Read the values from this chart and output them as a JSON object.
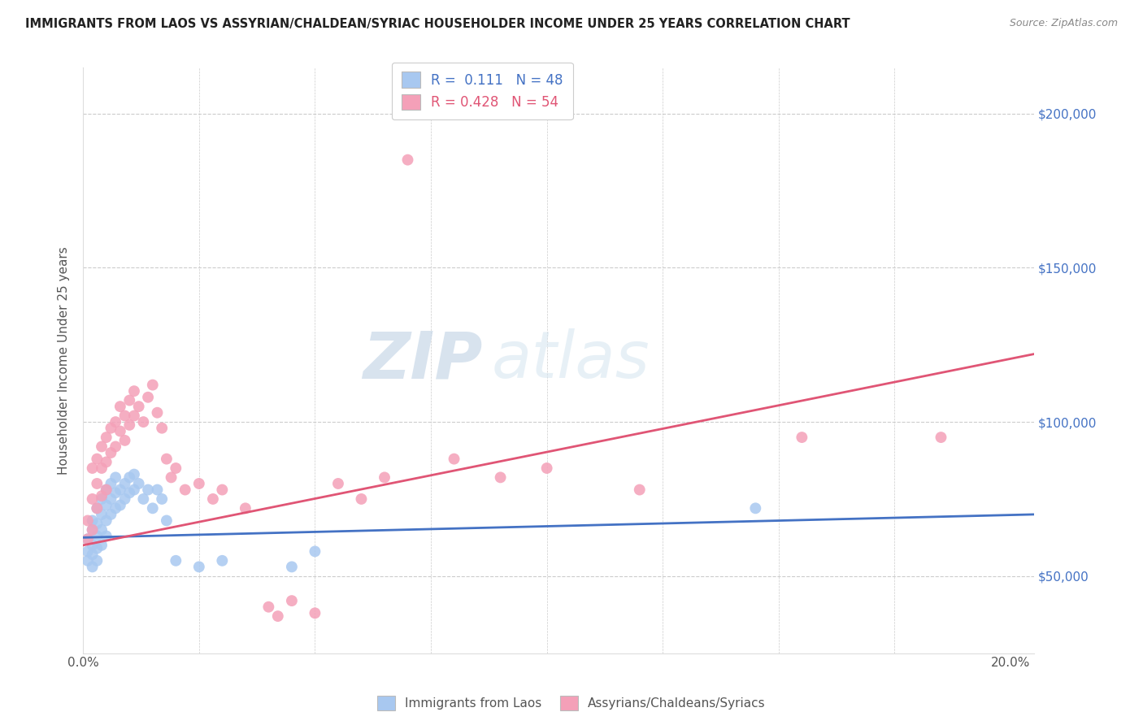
{
  "title": "IMMIGRANTS FROM LAOS VS ASSYRIAN/CHALDEAN/SYRIAC HOUSEHOLDER INCOME UNDER 25 YEARS CORRELATION CHART",
  "source": "Source: ZipAtlas.com",
  "ylabel": "Householder Income Under 25 years",
  "ytick_labels": [
    "$50,000",
    "$100,000",
    "$150,000",
    "$200,000"
  ],
  "ytick_values": [
    50000,
    100000,
    150000,
    200000
  ],
  "ylim": [
    25000,
    215000
  ],
  "xlim": [
    0.0,
    0.205
  ],
  "blue_color": "#A8C8F0",
  "pink_color": "#F4A0B8",
  "blue_line_color": "#4472C4",
  "pink_line_color": "#E05575",
  "watermark_zip": "ZIP",
  "watermark_atlas": "atlas",
  "blue_scatter_x": [
    0.001,
    0.001,
    0.001,
    0.002,
    0.002,
    0.002,
    0.002,
    0.002,
    0.003,
    0.003,
    0.003,
    0.003,
    0.003,
    0.004,
    0.004,
    0.004,
    0.004,
    0.005,
    0.005,
    0.005,
    0.005,
    0.006,
    0.006,
    0.006,
    0.007,
    0.007,
    0.007,
    0.008,
    0.008,
    0.009,
    0.009,
    0.01,
    0.01,
    0.011,
    0.011,
    0.012,
    0.013,
    0.014,
    0.015,
    0.016,
    0.017,
    0.018,
    0.02,
    0.025,
    0.03,
    0.045,
    0.05,
    0.145
  ],
  "blue_scatter_y": [
    62000,
    58000,
    55000,
    68000,
    65000,
    60000,
    57000,
    53000,
    72000,
    67000,
    63000,
    59000,
    55000,
    75000,
    70000,
    65000,
    60000,
    78000,
    73000,
    68000,
    63000,
    80000,
    75000,
    70000,
    82000,
    77000,
    72000,
    78000,
    73000,
    80000,
    75000,
    82000,
    77000,
    83000,
    78000,
    80000,
    75000,
    78000,
    72000,
    78000,
    75000,
    68000,
    55000,
    53000,
    55000,
    53000,
    58000,
    72000
  ],
  "pink_scatter_x": [
    0.001,
    0.001,
    0.002,
    0.002,
    0.002,
    0.003,
    0.003,
    0.003,
    0.004,
    0.004,
    0.004,
    0.005,
    0.005,
    0.005,
    0.006,
    0.006,
    0.007,
    0.007,
    0.008,
    0.008,
    0.009,
    0.009,
    0.01,
    0.01,
    0.011,
    0.011,
    0.012,
    0.013,
    0.014,
    0.015,
    0.016,
    0.017,
    0.018,
    0.019,
    0.02,
    0.022,
    0.025,
    0.028,
    0.03,
    0.035,
    0.04,
    0.042,
    0.045,
    0.05,
    0.055,
    0.06,
    0.065,
    0.07,
    0.08,
    0.09,
    0.1,
    0.12,
    0.155,
    0.185
  ],
  "pink_scatter_y": [
    68000,
    62000,
    85000,
    75000,
    65000,
    88000,
    80000,
    72000,
    92000,
    85000,
    76000,
    95000,
    87000,
    78000,
    98000,
    90000,
    100000,
    92000,
    105000,
    97000,
    102000,
    94000,
    107000,
    99000,
    110000,
    102000,
    105000,
    100000,
    108000,
    112000,
    103000,
    98000,
    88000,
    82000,
    85000,
    78000,
    80000,
    75000,
    78000,
    72000,
    40000,
    37000,
    42000,
    38000,
    80000,
    75000,
    82000,
    185000,
    88000,
    82000,
    85000,
    78000,
    95000,
    95000
  ]
}
